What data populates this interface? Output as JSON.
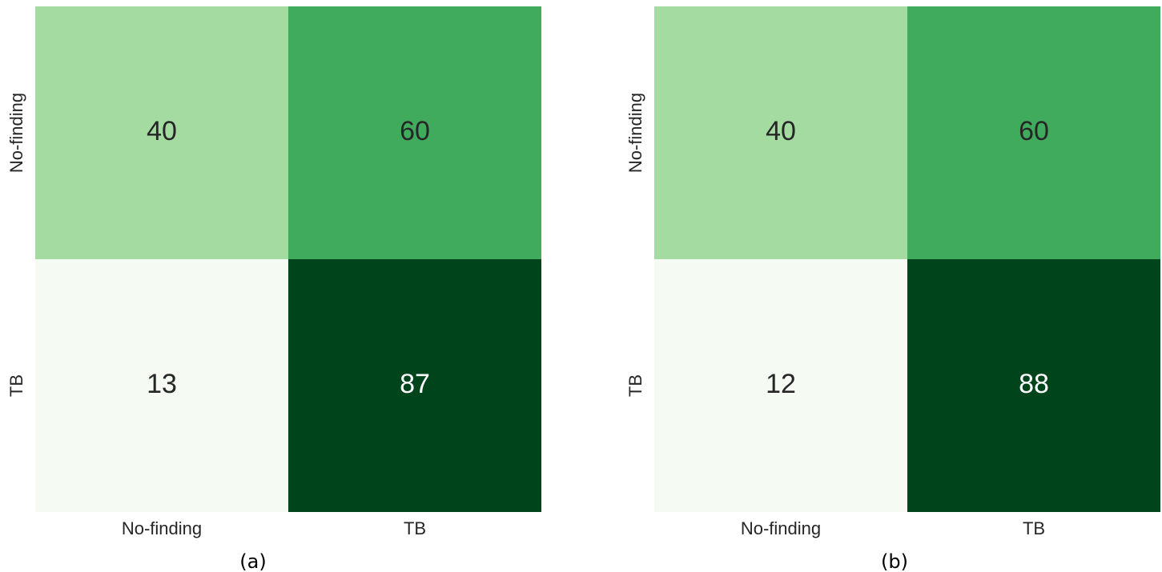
{
  "chart_data": [
    {
      "type": "heatmap",
      "caption": "(a)",
      "x_categories": [
        "No-finding",
        "TB"
      ],
      "y_categories": [
        "No-finding",
        "TB"
      ],
      "values": [
        [
          40,
          60
        ],
        [
          13,
          87
        ]
      ],
      "colors": [
        [
          "#a3dba0",
          "#41ab5d"
        ],
        [
          "#f5fbf3",
          "#00441b"
        ]
      ]
    },
    {
      "type": "heatmap",
      "caption": "(b)",
      "x_categories": [
        "No-finding",
        "TB"
      ],
      "y_categories": [
        "No-finding",
        "TB"
      ],
      "values": [
        [
          40,
          60
        ],
        [
          12,
          88
        ]
      ],
      "colors": [
        [
          "#a3dba0",
          "#41ab5d"
        ],
        [
          "#f5fbf3",
          "#00441b"
        ]
      ]
    }
  ]
}
